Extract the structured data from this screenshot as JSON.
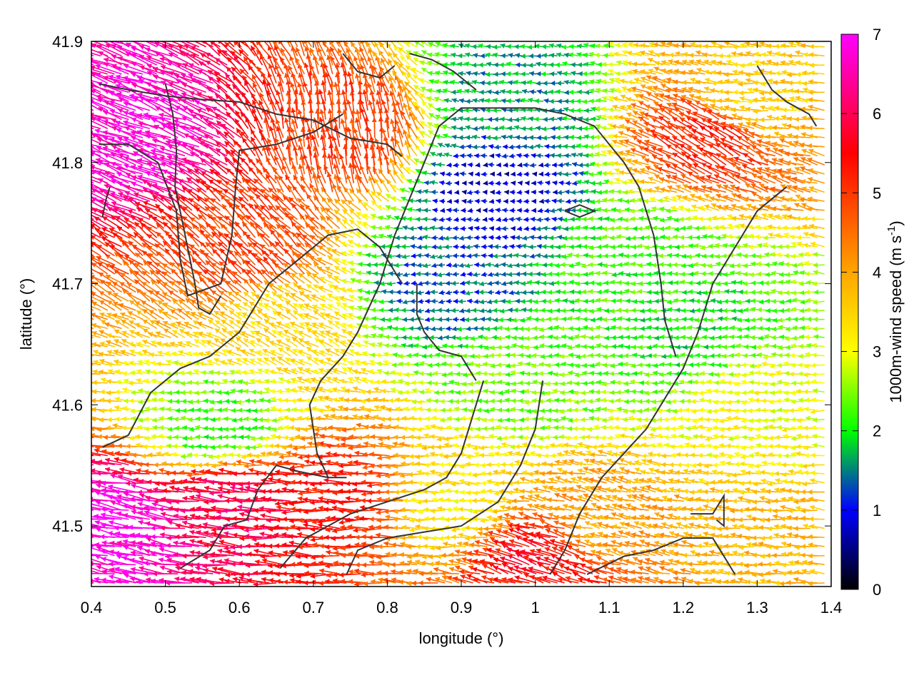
{
  "chart_data": {
    "type": "vector-field",
    "xlabel": "longitude (°)",
    "ylabel": "latitude (°)",
    "xlim": [
      0.4,
      1.4
    ],
    "ylim": [
      41.45,
      41.9
    ],
    "xticks": [
      "0.4",
      "0.5",
      "0.6",
      "0.7",
      "0.8",
      "0.9",
      "1",
      "1.1",
      "1.2",
      "1.3",
      "1.4"
    ],
    "yticks": [
      "41.5",
      "41.6",
      "41.7",
      "41.8",
      "41.9"
    ],
    "xtick_values": [
      0.4,
      0.5,
      0.6,
      0.7,
      0.8,
      0.9,
      1.0,
      1.1,
      1.2,
      1.3,
      1.4
    ],
    "ytick_values": [
      41.5,
      41.6,
      41.7,
      41.8,
      41.9
    ],
    "colorbar": {
      "label": "1000m-wind speed (m s-1)",
      "label_main": "1000m-wind speed (m s",
      "label_sup": "-1",
      "label_close": ")",
      "range": [
        0,
        7
      ],
      "ticks": [
        "0",
        "1",
        "2",
        "3",
        "4",
        "5",
        "6",
        "7"
      ],
      "tick_values": [
        0,
        1,
        2,
        3,
        4,
        5,
        6,
        7
      ],
      "colors": [
        "#000000",
        "#0000ff",
        "#00ff00",
        "#ffff00",
        "#ffa500",
        "#ff0000",
        "#ff00ff"
      ],
      "color_positions": [
        0,
        1,
        2,
        3,
        4,
        5.5,
        7
      ]
    },
    "vector_color_scale": "speed",
    "grid": false,
    "wind_regions": [
      {
        "lon": 0.47,
        "lat": 41.82,
        "speed": 6.8,
        "direction_deg": 160
      },
      {
        "lon": 0.45,
        "lat": 41.5,
        "speed": 6.9,
        "direction_deg": 170
      },
      {
        "lon": 0.6,
        "lat": 41.52,
        "speed": 6.0,
        "direction_deg": 175
      },
      {
        "lon": 0.75,
        "lat": 41.82,
        "speed": 5.0,
        "direction_deg": 100
      },
      {
        "lon": 0.62,
        "lat": 41.72,
        "speed": 5.0,
        "direction_deg": 135
      },
      {
        "lon": 0.75,
        "lat": 41.52,
        "speed": 5.3,
        "direction_deg": 180
      },
      {
        "lon": 0.95,
        "lat": 41.78,
        "speed": 0.8,
        "direction_deg": 180
      },
      {
        "lon": 0.88,
        "lat": 41.7,
        "speed": 1.3,
        "direction_deg": 185
      },
      {
        "lon": 0.98,
        "lat": 41.85,
        "speed": 1.6,
        "direction_deg": 175
      },
      {
        "lon": 1.15,
        "lat": 41.72,
        "speed": 2.2,
        "direction_deg": 180
      },
      {
        "lon": 1.0,
        "lat": 41.62,
        "speed": 2.4,
        "direction_deg": 180
      },
      {
        "lon": 0.9,
        "lat": 41.52,
        "speed": 3.2,
        "direction_deg": 180
      },
      {
        "lon": 1.1,
        "lat": 41.5,
        "speed": 4.0,
        "direction_deg": 165
      },
      {
        "lon": 1.3,
        "lat": 41.85,
        "speed": 3.5,
        "direction_deg": 175
      },
      {
        "lon": 1.3,
        "lat": 41.6,
        "speed": 3.0,
        "direction_deg": 180
      },
      {
        "lon": 1.35,
        "lat": 41.48,
        "speed": 3.8,
        "direction_deg": 175
      },
      {
        "lon": 1.25,
        "lat": 41.82,
        "speed": 5.2,
        "direction_deg": 150
      },
      {
        "lon": 0.58,
        "lat": 41.58,
        "speed": 2.2,
        "direction_deg": 180
      },
      {
        "lon": 0.67,
        "lat": 41.67,
        "speed": 3.4,
        "direction_deg": 150
      },
      {
        "lon": 1.02,
        "lat": 41.47,
        "speed": 5.5,
        "direction_deg": 160
      },
      {
        "lon": 1.22,
        "lat": 41.66,
        "speed": 2.0,
        "direction_deg": 180
      }
    ],
    "contours": [
      [
        [
          0.41,
          41.865
        ],
        [
          0.45,
          41.86
        ],
        [
          0.5,
          41.855
        ],
        [
          0.55,
          41.852
        ],
        [
          0.6,
          41.85
        ],
        [
          0.65,
          41.84
        ],
        [
          0.7,
          41.835
        ],
        [
          0.75,
          41.82
        ],
        [
          0.8,
          41.815
        ],
        [
          0.82,
          41.805
        ]
      ],
      [
        [
          0.41,
          41.815
        ],
        [
          0.45,
          41.815
        ],
        [
          0.49,
          41.8
        ],
        [
          0.515,
          41.76
        ],
        [
          0.52,
          41.72
        ],
        [
          0.53,
          41.69
        ],
        [
          0.575,
          41.7
        ],
        [
          0.59,
          41.74
        ],
        [
          0.595,
          41.78
        ],
        [
          0.6,
          41.81
        ],
        [
          0.65,
          41.815
        ],
        [
          0.7,
          41.825
        ],
        [
          0.74,
          41.84
        ]
      ],
      [
        [
          0.415,
          41.565
        ],
        [
          0.45,
          41.575
        ],
        [
          0.48,
          41.61
        ],
        [
          0.52,
          41.63
        ],
        [
          0.56,
          41.64
        ],
        [
          0.6,
          41.66
        ],
        [
          0.64,
          41.7
        ],
        [
          0.68,
          41.72
        ],
        [
          0.72,
          41.74
        ],
        [
          0.76,
          41.745
        ],
        [
          0.79,
          41.73
        ],
        [
          0.81,
          41.71
        ],
        [
          0.82,
          41.7
        ]
      ],
      [
        [
          0.415,
          41.755
        ],
        [
          0.42,
          41.77
        ],
        [
          0.425,
          41.78
        ]
      ],
      [
        [
          0.5,
          41.865
        ],
        [
          0.51,
          41.84
        ],
        [
          0.515,
          41.81
        ],
        [
          0.513,
          41.78
        ],
        [
          0.52,
          41.76
        ],
        [
          0.53,
          41.73
        ],
        [
          0.54,
          41.7
        ],
        [
          0.545,
          41.68
        ],
        [
          0.56,
          41.675
        ],
        [
          0.575,
          41.69
        ]
      ],
      [
        [
          0.52,
          41.465
        ],
        [
          0.56,
          41.48
        ],
        [
          0.58,
          41.5
        ],
        [
          0.61,
          41.505
        ],
        [
          0.625,
          41.53
        ],
        [
          0.65,
          41.55
        ],
        [
          0.68,
          41.545
        ],
        [
          0.72,
          41.54
        ],
        [
          0.745,
          41.54
        ]
      ],
      [
        [
          0.655,
          41.465
        ],
        [
          0.69,
          41.49
        ],
        [
          0.72,
          41.5
        ],
        [
          0.75,
          41.51
        ],
        [
          0.8,
          41.52
        ],
        [
          0.85,
          41.53
        ],
        [
          0.88,
          41.54
        ],
        [
          0.9,
          41.56
        ],
        [
          0.92,
          41.6
        ],
        [
          0.93,
          41.62
        ]
      ],
      [
        [
          0.745,
          41.46
        ],
        [
          0.76,
          41.48
        ],
        [
          0.8,
          41.49
        ],
        [
          0.85,
          41.495
        ],
        [
          0.9,
          41.5
        ],
        [
          0.95,
          41.52
        ],
        [
          0.98,
          41.55
        ],
        [
          1.0,
          41.58
        ],
        [
          1.01,
          41.62
        ]
      ],
      [
        [
          0.72,
          41.54
        ],
        [
          0.705,
          41.56
        ],
        [
          0.7,
          41.58
        ],
        [
          0.695,
          41.6
        ],
        [
          0.71,
          41.62
        ],
        [
          0.74,
          41.64
        ],
        [
          0.76,
          41.66
        ],
        [
          0.79,
          41.7
        ],
        [
          0.81,
          41.74
        ],
        [
          0.83,
          41.77
        ],
        [
          0.85,
          41.8
        ],
        [
          0.87,
          41.83
        ],
        [
          0.9,
          41.845
        ],
        [
          0.95,
          41.845
        ],
        [
          1.0,
          41.845
        ],
        [
          1.04,
          41.84
        ],
        [
          1.08,
          41.83
        ],
        [
          1.12,
          41.8
        ],
        [
          1.14,
          41.78
        ],
        [
          1.16,
          41.74
        ],
        [
          1.17,
          41.7
        ],
        [
          1.175,
          41.67
        ],
        [
          1.19,
          41.64
        ]
      ],
      [
        [
          0.84,
          41.7
        ],
        [
          0.84,
          41.675
        ],
        [
          0.85,
          41.66
        ],
        [
          0.87,
          41.645
        ],
        [
          0.9,
          41.64
        ],
        [
          0.92,
          41.62
        ]
      ],
      [
        [
          1.02,
          41.46
        ],
        [
          1.04,
          41.48
        ],
        [
          1.06,
          41.51
        ],
        [
          1.09,
          41.54
        ],
        [
          1.12,
          41.56
        ],
        [
          1.15,
          41.58
        ],
        [
          1.17,
          41.6
        ],
        [
          1.2,
          41.63
        ],
        [
          1.22,
          41.66
        ],
        [
          1.24,
          41.7
        ],
        [
          1.26,
          41.72
        ],
        [
          1.28,
          41.74
        ],
        [
          1.3,
          41.76
        ],
        [
          1.32,
          41.77
        ],
        [
          1.34,
          41.78
        ]
      ],
      [
        [
          1.07,
          41.46
        ],
        [
          1.12,
          41.475
        ],
        [
          1.16,
          41.48
        ],
        [
          1.2,
          41.49
        ],
        [
          1.24,
          41.49
        ],
        [
          1.26,
          41.47
        ],
        [
          1.27,
          41.46
        ]
      ],
      [
        [
          1.21,
          41.51
        ],
        [
          1.24,
          41.51
        ],
        [
          1.255,
          41.525
        ],
        [
          1.255,
          41.5
        ],
        [
          1.245,
          41.505
        ]
      ],
      [
        [
          1.3,
          41.88
        ],
        [
          1.32,
          41.86
        ],
        [
          1.34,
          41.85
        ],
        [
          1.37,
          41.84
        ],
        [
          1.38,
          41.83
        ]
      ],
      [
        [
          0.83,
          41.89
        ],
        [
          0.86,
          41.885
        ],
        [
          0.89,
          41.875
        ],
        [
          0.92,
          41.86
        ]
      ],
      [
        [
          0.74,
          41.89
        ],
        [
          0.76,
          41.875
        ],
        [
          0.79,
          41.87
        ],
        [
          0.81,
          41.88
        ]
      ],
      [
        [
          1.04,
          41.76
        ],
        [
          1.06,
          41.765
        ],
        [
          1.08,
          41.76
        ],
        [
          1.06,
          41.755
        ],
        [
          1.04,
          41.76
        ]
      ]
    ]
  }
}
